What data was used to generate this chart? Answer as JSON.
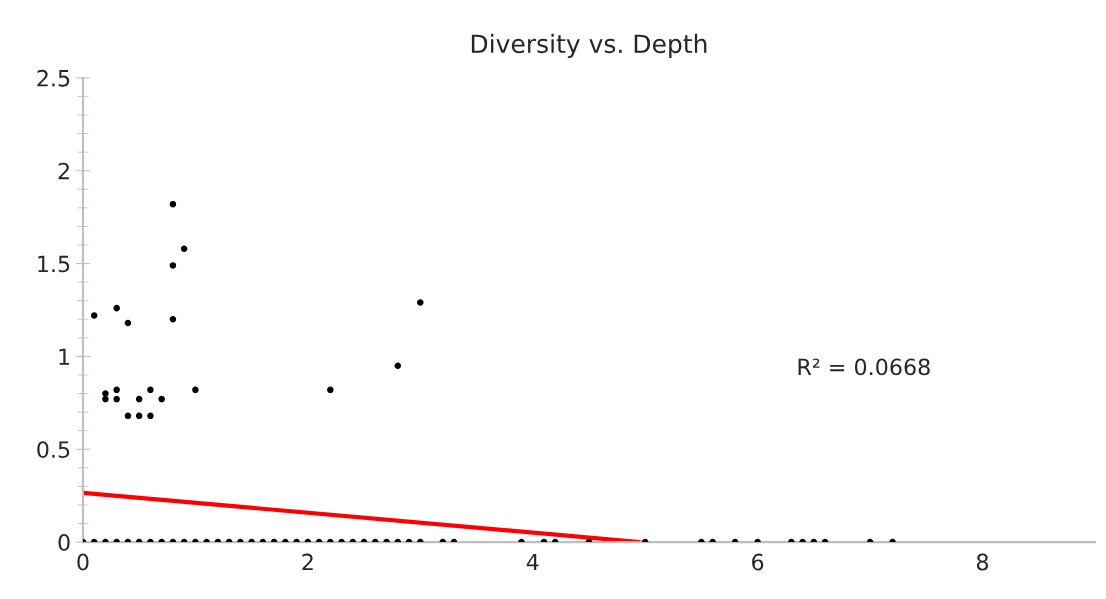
{
  "chart_data": {
    "type": "scatter",
    "title": "Diversity vs. Depth",
    "series": [
      {
        "color": "#000000",
        "marker": "circle",
        "x": [
          0.1,
          0.3,
          0.4,
          0.8,
          0.9,
          0.8,
          0.8,
          3.0,
          2.8,
          2.2,
          1.0,
          0.2,
          0.2,
          0.3,
          0.3,
          0.5,
          0.6,
          0.7,
          0.4,
          0.5,
          0.6,
          0,
          0.1,
          0.2,
          0.3,
          0.4,
          0.5,
          0.6,
          0.7,
          0.8,
          0.9,
          1.0,
          1.1,
          1.2,
          1.3,
          1.4,
          1.5,
          1.6,
          1.7,
          1.8,
          1.9,
          2.0,
          2.1,
          2.2,
          2.3,
          2.4,
          2.5,
          2.6,
          2.7,
          2.8,
          2.9,
          3.0,
          3.2,
          3.3,
          3.9,
          4.1,
          4.2,
          4.5,
          5.0,
          5.5,
          5.6,
          5.8,
          6.0,
          6.3,
          6.4,
          6.5,
          6.6,
          7.0,
          7.2
        ],
        "values": [
          1.22,
          1.26,
          1.18,
          1.82,
          1.58,
          1.49,
          1.2,
          1.29,
          0.95,
          0.82,
          0.82,
          0.8,
          0.77,
          0.82,
          0.77,
          0.77,
          0.82,
          0.77,
          0.68,
          0.68,
          0.68,
          0,
          0,
          0,
          0,
          0,
          0,
          0,
          0,
          0,
          0,
          0,
          0,
          0,
          0,
          0,
          0,
          0,
          0,
          0,
          0,
          0,
          0,
          0,
          0,
          0,
          0,
          0,
          0,
          0,
          0,
          0,
          0,
          0,
          0,
          0,
          0,
          0,
          0,
          0,
          0,
          0,
          0,
          0,
          0,
          0,
          0,
          0,
          0
        ]
      },
      {
        "type": "line",
        "color": "#ff0000",
        "line_style": "solid",
        "x": [
          0,
          4.95
        ],
        "values": [
          0.265,
          0
        ]
      }
    ],
    "annotations": [
      "R² = 0.0668"
    ],
    "xlim": [
      0,
      9
    ],
    "xticks": [
      0,
      2,
      4,
      6,
      8
    ],
    "ylim": [
      0,
      2.5
    ],
    "yticks": [
      0,
      0.5,
      1,
      1.5,
      2,
      2.5
    ],
    "grid": false,
    "legend": false
  }
}
